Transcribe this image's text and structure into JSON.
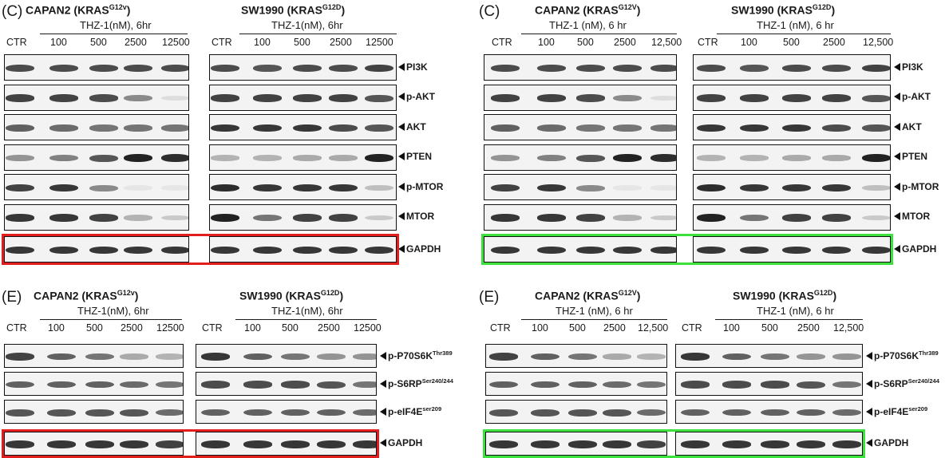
{
  "colors": {
    "red_box": "#e11d1d",
    "green_box": "#3ce23c"
  },
  "icons": {
    "band_arrow": "left-pointing-triangle-icon"
  },
  "panels": [
    {
      "letter": "(C)",
      "cell_a": {
        "title": "CAPAN2 (KRAS",
        "sup": "G12v",
        "close": ")",
        "treatment": "THZ-1(nM), 6hr",
        "lanes": [
          "CTR",
          "100",
          "500",
          "2500",
          "12500"
        ]
      },
      "cell_b": {
        "title": "SW1990 (KRAS",
        "sup": "G12D",
        "close": ")",
        "treatment": "THZ-1(nM), 6hr",
        "lanes": [
          "CTR",
          "100",
          "500",
          "2500",
          "12500"
        ]
      },
      "proteins": [
        {
          "name": "PI3K",
          "sup": ""
        },
        {
          "name": "p-AKT",
          "sup": ""
        },
        {
          "name": "AKT",
          "sup": ""
        },
        {
          "name": "PTEN",
          "sup": ""
        },
        {
          "name": "p-MTOR",
          "sup": ""
        },
        {
          "name": "MTOR",
          "sup": ""
        },
        {
          "name": "GAPDH",
          "sup": ""
        }
      ],
      "highlight": "red",
      "intensity_a": [
        [
          0.8,
          0.8,
          0.8,
          0.8,
          0.8
        ],
        [
          0.85,
          0.85,
          0.8,
          0.5,
          0.1
        ],
        [
          0.7,
          0.65,
          0.6,
          0.6,
          0.6
        ],
        [
          0.45,
          0.55,
          0.75,
          1.0,
          0.95
        ],
        [
          0.85,
          0.9,
          0.5,
          0.05,
          0.05
        ],
        [
          0.9,
          0.9,
          0.85,
          0.3,
          0.2
        ],
        [
          0.9,
          0.9,
          0.9,
          0.9,
          0.9
        ]
      ],
      "intensity_b": [
        [
          0.8,
          0.75,
          0.8,
          0.8,
          0.85
        ],
        [
          0.85,
          0.85,
          0.85,
          0.85,
          0.75
        ],
        [
          0.9,
          0.9,
          0.9,
          0.8,
          0.75
        ],
        [
          0.3,
          0.3,
          0.35,
          0.35,
          1.0
        ],
        [
          0.95,
          0.9,
          0.9,
          0.9,
          0.25
        ],
        [
          1.0,
          0.6,
          0.85,
          0.85,
          0.2
        ],
        [
          0.9,
          0.9,
          0.9,
          0.9,
          0.9
        ]
      ]
    },
    {
      "letter": "(C)",
      "cell_a": {
        "title": "CAPAN2 (KRAS",
        "sup": "G12V",
        "close": ")",
        "treatment": "THZ-1 (nM), 6 hr",
        "lanes": [
          "CTR",
          "100",
          "500",
          "2500",
          "12,500"
        ]
      },
      "cell_b": {
        "title": "SW1990 (KRAS",
        "sup": "G12D",
        "close": ")",
        "treatment": "THZ-1 (nM), 6 hr",
        "lanes": [
          "CTR",
          "100",
          "500",
          "2500",
          "12,500"
        ]
      },
      "proteins": [
        {
          "name": "PI3K",
          "sup": ""
        },
        {
          "name": "p-AKT",
          "sup": ""
        },
        {
          "name": "AKT",
          "sup": ""
        },
        {
          "name": "PTEN",
          "sup": ""
        },
        {
          "name": "p-MTOR",
          "sup": ""
        },
        {
          "name": "MTOR",
          "sup": ""
        },
        {
          "name": "GAPDH",
          "sup": ""
        }
      ],
      "highlight": "green",
      "intensity_a": [
        [
          0.8,
          0.8,
          0.8,
          0.8,
          0.8
        ],
        [
          0.85,
          0.85,
          0.8,
          0.5,
          0.1
        ],
        [
          0.7,
          0.65,
          0.6,
          0.6,
          0.6
        ],
        [
          0.45,
          0.55,
          0.75,
          1.0,
          0.95
        ],
        [
          0.85,
          0.9,
          0.5,
          0.05,
          0.05
        ],
        [
          0.9,
          0.9,
          0.85,
          0.3,
          0.2
        ],
        [
          0.9,
          0.9,
          0.9,
          0.9,
          0.9
        ]
      ],
      "intensity_b": [
        [
          0.8,
          0.75,
          0.8,
          0.8,
          0.85
        ],
        [
          0.85,
          0.85,
          0.85,
          0.85,
          0.75
        ],
        [
          0.9,
          0.9,
          0.9,
          0.8,
          0.75
        ],
        [
          0.3,
          0.3,
          0.35,
          0.35,
          1.0
        ],
        [
          0.95,
          0.9,
          0.9,
          0.9,
          0.25
        ],
        [
          1.0,
          0.6,
          0.85,
          0.85,
          0.2
        ],
        [
          0.9,
          0.9,
          0.9,
          0.9,
          0.9
        ]
      ]
    },
    {
      "letter": "(E)",
      "cell_a": {
        "title": "CAPAN2 (KRAS",
        "sup": "G12v",
        "close": ")",
        "treatment": "THZ-1(nM), 6hr",
        "lanes": [
          "CTR",
          "100",
          "500",
          "2500",
          "12500"
        ]
      },
      "cell_b": {
        "title": "SW1990 (KRAS",
        "sup": "G12D",
        "close": ")",
        "treatment": "THZ-1(nM), 6hr",
        "lanes": [
          "CTR",
          "100",
          "500",
          "2500",
          "12500"
        ]
      },
      "proteins": [
        {
          "name": "p-P70S6K",
          "sup": "Thr389"
        },
        {
          "name": "p-S6RP",
          "sup": "Ser240/244"
        },
        {
          "name": "p-eIF4E",
          "sup": "ser209"
        },
        {
          "name": "GAPDH",
          "sup": ""
        }
      ],
      "highlight": "red",
      "intensity_a": [
        [
          0.85,
          0.7,
          0.6,
          0.35,
          0.3
        ],
        [
          0.7,
          0.7,
          0.7,
          0.65,
          0.6
        ],
        [
          0.75,
          0.75,
          0.75,
          0.75,
          0.65
        ],
        [
          0.9,
          0.9,
          0.9,
          0.9,
          0.85
        ]
      ],
      "intensity_b": [
        [
          0.9,
          0.7,
          0.6,
          0.45,
          0.45
        ],
        [
          0.8,
          0.8,
          0.8,
          0.75,
          0.6
        ],
        [
          0.7,
          0.7,
          0.7,
          0.7,
          0.65
        ],
        [
          0.9,
          0.9,
          0.9,
          0.9,
          0.9
        ]
      ]
    },
    {
      "letter": "(E)",
      "cell_a": {
        "title": "CAPAN2 (KRAS",
        "sup": "G12V",
        "close": ")",
        "treatment": "THZ-1 (nM), 6 hr",
        "lanes": [
          "CTR",
          "100",
          "500",
          "2500",
          "12,500"
        ]
      },
      "cell_b": {
        "title": "SW1990 (KRAS",
        "sup": "G12D",
        "close": ")",
        "treatment": "THZ-1 (nM), 6 hr",
        "lanes": [
          "CTR",
          "100",
          "500",
          "2500",
          "12,500"
        ]
      },
      "proteins": [
        {
          "name": "p-P70S6K",
          "sup": "Thr389"
        },
        {
          "name": "p-S6RP",
          "sup": "Ser240/244"
        },
        {
          "name": "p-eIF4E",
          "sup": "ser209"
        },
        {
          "name": "GAPDH",
          "sup": ""
        }
      ],
      "highlight": "green",
      "intensity_a": [
        [
          0.85,
          0.7,
          0.6,
          0.35,
          0.3
        ],
        [
          0.7,
          0.7,
          0.7,
          0.65,
          0.6
        ],
        [
          0.75,
          0.75,
          0.75,
          0.75,
          0.65
        ],
        [
          0.9,
          0.9,
          0.9,
          0.9,
          0.85
        ]
      ],
      "intensity_b": [
        [
          0.9,
          0.7,
          0.6,
          0.45,
          0.45
        ],
        [
          0.8,
          0.8,
          0.8,
          0.75,
          0.6
        ],
        [
          0.7,
          0.7,
          0.7,
          0.7,
          0.65
        ],
        [
          0.9,
          0.9,
          0.9,
          0.9,
          0.9
        ]
      ]
    }
  ]
}
